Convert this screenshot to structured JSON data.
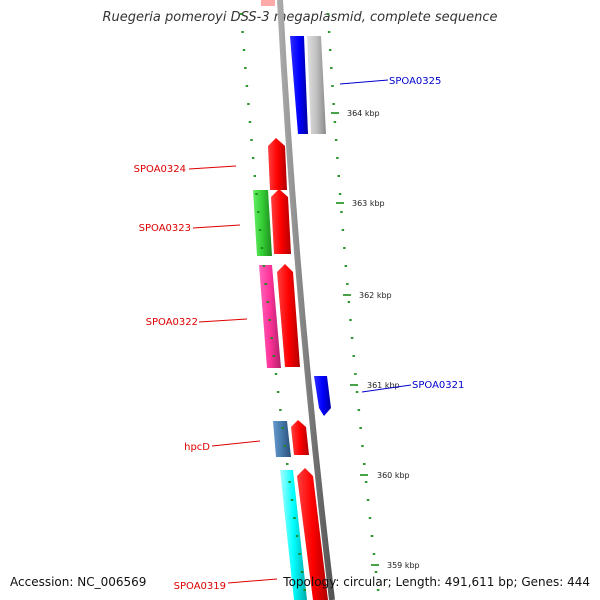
{
  "title": "Ruegeria pomeroyi DSS-3 megaplasmid, complete sequence",
  "footer": {
    "accession": "Accession: NC_006569",
    "summary": "Topology: circular; Length: 491,611 bp; Genes: 444"
  },
  "ticks": [
    "364 kbp",
    "363 kbp",
    "362 kbp",
    "361 kbp",
    "360 kbp",
    "359 kbp"
  ],
  "genes": [
    {
      "label": "SPOA0325",
      "color": "#0000cc"
    },
    {
      "label": "SPOA0324",
      "color": "#dd0000"
    },
    {
      "label": "SPOA0323",
      "color": "#dd0000"
    },
    {
      "label": "SPOA0322",
      "color": "#dd0000"
    },
    {
      "label": "SPOA0321",
      "color": "#0000cc"
    },
    {
      "label": "hpcD",
      "color": "#dd0000"
    },
    {
      "label": "SPOA0319",
      "color": "#dd0000"
    }
  ],
  "colors": {
    "backbone": "#808080",
    "tick": "#1a8a1a",
    "forward_cds": "#ff0000",
    "reverse_cds": "#0000ff",
    "reverse_feature": "#c0c0c0",
    "cog_green": "#33cc33",
    "cog_pink": "#ff3399",
    "cog_steel": "#4477aa",
    "cog_cyan": "#00ffff",
    "top_partial": "#ffaaaa"
  }
}
